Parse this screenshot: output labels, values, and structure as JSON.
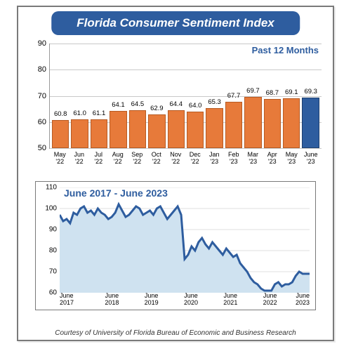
{
  "title": "Florida Consumer Sentiment Index",
  "courtesy": "Courtesy of University of Florida Bureau of Economic and Business Research",
  "bar_chart": {
    "type": "bar",
    "past_label": "Past 12 Months",
    "ylim": [
      50,
      90
    ],
    "yticks": [
      50,
      60,
      70,
      80,
      90
    ],
    "categories": [
      "May '22",
      "Jun '22",
      "Jul '22",
      "Aug '22",
      "Sep '22",
      "Oct '22",
      "Nov '22",
      "Dec '22",
      "Jan '23",
      "Feb '23",
      "Mar '23",
      "Apr '23",
      "May '23",
      "June '23"
    ],
    "values": [
      60.8,
      61.0,
      61.1,
      64.1,
      64.5,
      62.9,
      64.4,
      64.0,
      65.3,
      67.7,
      69.7,
      68.7,
      69.1,
      69.3
    ],
    "bar_color": "#e77a3a",
    "bar_border": "#b75a22",
    "last_bar_color": "#2e5d9f",
    "last_bar_border": "#1d3f6e",
    "grid_color": "#c9c9c9",
    "tick_fontsize": 11,
    "value_fontsize": 9.5,
    "xlabel_fontsize": 9
  },
  "line_chart": {
    "type": "area",
    "title": "June 2017 - June 2023",
    "ylim": [
      60,
      110
    ],
    "yticks": [
      60,
      70,
      80,
      90,
      100,
      110
    ],
    "xlabels": [
      "June 2017",
      "June 2018",
      "June 2019",
      "June 2020",
      "June 2021",
      "June 2022",
      "June 2023"
    ],
    "series": [
      97,
      94,
      95,
      93,
      98,
      97,
      100,
      101,
      98,
      99,
      97,
      100,
      98,
      97,
      95,
      96,
      98,
      102,
      99,
      96,
      97,
      99,
      101,
      100,
      97,
      98,
      99,
      97,
      100,
      101,
      98,
      95,
      97,
      99,
      101,
      97,
      76,
      78,
      82,
      80,
      84,
      86,
      83,
      81,
      84,
      82,
      80,
      78,
      81,
      79,
      77,
      78,
      74,
      72,
      70,
      67,
      65,
      64,
      62,
      61,
      61,
      61,
      64,
      65,
      63,
      64,
      64,
      65,
      68,
      70,
      69,
      69,
      69
    ],
    "line_color": "#2e5d9f",
    "fill_color": "#cfe2f0",
    "grid_color": "#c0c0c0",
    "line_width": 3,
    "tick_fontsize": 10,
    "xlabel_fontsize": 9,
    "title_fontsize": 14
  },
  "colors": {
    "frame_border": "#7a7a7a",
    "title_bg": "#2e5d9f",
    "title_fg": "#ffffff",
    "background": "#ffffff"
  }
}
